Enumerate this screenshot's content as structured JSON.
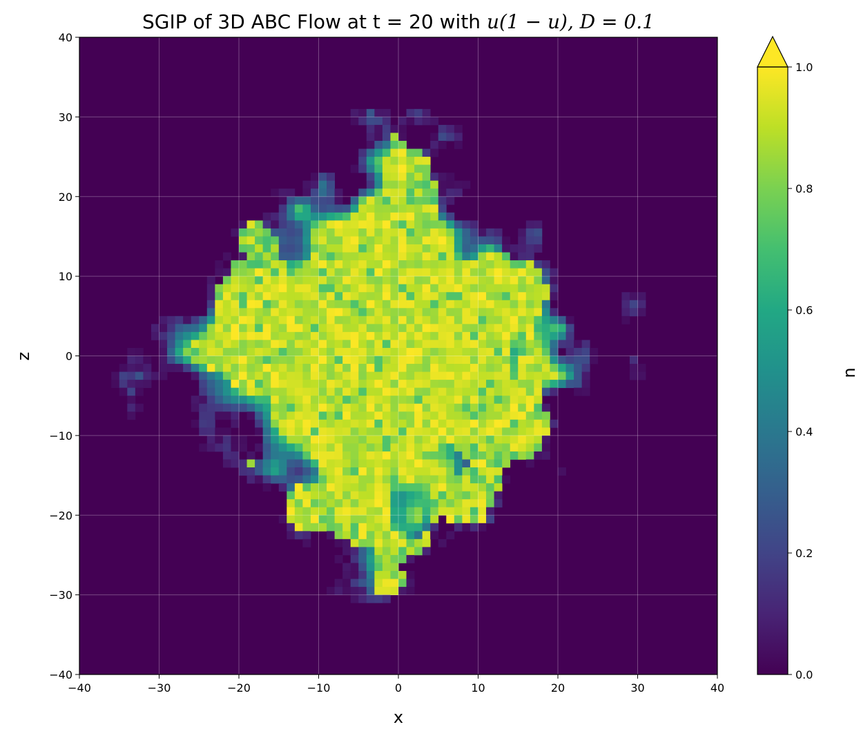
{
  "chart_data": {
    "type": "heatmap",
    "title_prefix": "SGIP of 3D ABC Flow at t = 20 with ",
    "title_math": "u(1 − u), D = 0.1",
    "xlabel": "x",
    "ylabel": "z",
    "xlim": [
      -40,
      40
    ],
    "ylim": [
      -40,
      40
    ],
    "grid": true,
    "xticks": [
      "−40",
      "−30",
      "−20",
      "−10",
      "0",
      "10",
      "20",
      "30",
      "40"
    ],
    "yticks": [
      "−40",
      "−30",
      "−20",
      "−10",
      "0",
      "10",
      "20",
      "30",
      "40"
    ],
    "colorbar": {
      "label": "u",
      "range": [
        0.0,
        1.0
      ],
      "extend": "max",
      "colormap": "viridis",
      "ticks": [
        "0.0",
        "0.2",
        "0.4",
        "0.6",
        "0.8",
        "1.0"
      ]
    },
    "grid_resolution": [
      80,
      80
    ],
    "field": {
      "description": "Invaded region roughly diamond shaped, centered near x=-3, z=0; saturated core (u≈1) with ragged fingered boundary",
      "center": [
        -3,
        0
      ],
      "core_radius_l1": 27,
      "x_extent": [
        -38,
        32
      ],
      "z_extent": [
        -33,
        31
      ]
    }
  }
}
